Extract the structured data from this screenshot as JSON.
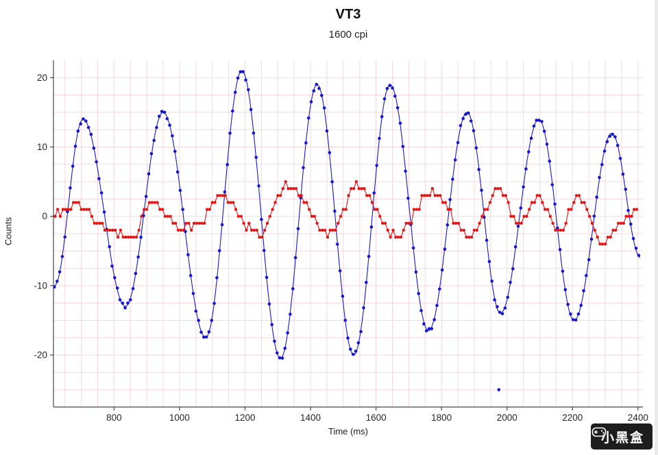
{
  "chart_data": {
    "type": "line",
    "title": "VT3",
    "subtitle": "1600 cpi",
    "xlabel": "Time (ms)",
    "ylabel": "Counts",
    "xlim": [
      615,
      2415
    ],
    "ylim": [
      -27.5,
      22.5
    ],
    "xticks": [
      800,
      1000,
      1200,
      1400,
      1600,
      1800,
      2000,
      2200,
      2400
    ],
    "yticks": [
      -20,
      -10,
      0,
      10,
      20
    ],
    "grid": {
      "x_step": 50,
      "y_step": 2.5,
      "color": "#f6d8de",
      "on": true
    },
    "legend": "none",
    "series": [
      {
        "name": "blue-counts",
        "color": "#1616d0",
        "marker": "dot",
        "marker_radius": 2.3,
        "quantize": false,
        "sample_step_ms": 8,
        "keypoints": [
          [
            618,
            -10
          ],
          [
            705,
            14
          ],
          [
            835,
            -13
          ],
          [
            950,
            15
          ],
          [
            1080,
            -17.5
          ],
          [
            1190,
            21
          ],
          [
            1308,
            -20.5
          ],
          [
            1420,
            19
          ],
          [
            1532,
            -20
          ],
          [
            1643,
            19
          ],
          [
            1760,
            -16.5
          ],
          [
            1878,
            15
          ],
          [
            1980,
            -14
          ],
          [
            2097,
            14
          ],
          [
            2205,
            -15
          ],
          [
            2320,
            12
          ],
          [
            2408,
            -6
          ]
        ]
      },
      {
        "name": "red-counts",
        "color": "#e01717",
        "marker": "dot",
        "marker_radius": 2.2,
        "quantize": true,
        "sample_step_ms": 8,
        "keypoints": [
          [
            620,
            0.5
          ],
          [
            690,
            2
          ],
          [
            770,
            -1.5
          ],
          [
            850,
            -3
          ],
          [
            915,
            2
          ],
          [
            1000,
            -1.5
          ],
          [
            1060,
            -1
          ],
          [
            1120,
            3
          ],
          [
            1240,
            -2.5
          ],
          [
            1330,
            4.5
          ],
          [
            1460,
            -2.5
          ],
          [
            1545,
            4.5
          ],
          [
            1660,
            -2.8
          ],
          [
            1770,
            3.5
          ],
          [
            1880,
            -2.5
          ],
          [
            1975,
            3.5
          ],
          [
            2040,
            -1
          ],
          [
            2095,
            2.5
          ],
          [
            2160,
            -2
          ],
          [
            2215,
            2.5
          ],
          [
            2295,
            -3.5
          ],
          [
            2400,
            1
          ]
        ]
      }
    ],
    "outlier_points": [
      {
        "series": 0,
        "x": 1975,
        "y": -25
      }
    ]
  },
  "watermark": {
    "text": "小黑盒",
    "icon": "game-controller-icon",
    "background": "#0d0d0d",
    "text_color": "#ffffff"
  }
}
